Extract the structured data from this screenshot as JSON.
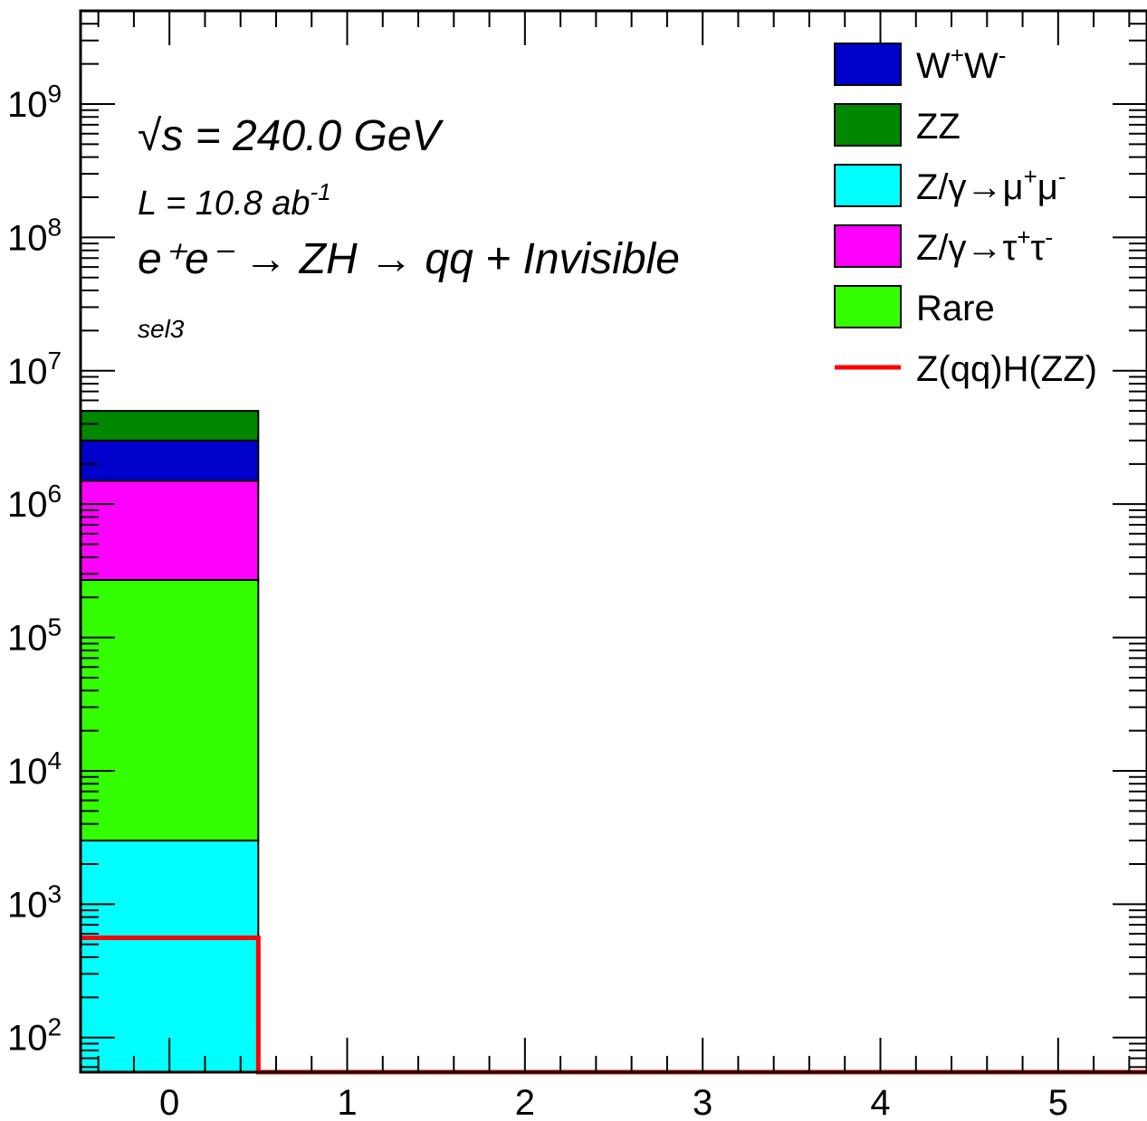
{
  "chart_data": {
    "type": "bar",
    "stacked": true,
    "x_scale": "linear",
    "y_scale": "log",
    "xlim": [
      -0.5,
      5.5
    ],
    "ylim": [
      55,
      5000000000
    ],
    "x_ticks": [
      "0",
      "1",
      "2",
      "3",
      "4",
      "5"
    ],
    "y_ticks": [
      {
        "base": "10",
        "exp": "2"
      },
      {
        "base": "10",
        "exp": "3"
      },
      {
        "base": "10",
        "exp": "4"
      },
      {
        "base": "10",
        "exp": "5"
      },
      {
        "base": "10",
        "exp": "6"
      },
      {
        "base": "10",
        "exp": "7"
      },
      {
        "base": "10",
        "exp": "8"
      },
      {
        "base": "10",
        "exp": "9"
      }
    ],
    "bins": [
      {
        "x0": -0.5,
        "x1": 0.5
      }
    ],
    "stack": [
      {
        "name": "Z/γ→μ⁺μ⁻",
        "color": "#00ffff",
        "values": [
          3000
        ]
      },
      {
        "name": "Rare",
        "color": "#33ff00",
        "values": [
          267000
        ]
      },
      {
        "name": "Z/γ→τ⁺τ⁻",
        "color": "#ff00ff",
        "values": [
          1230000
        ]
      },
      {
        "name": "W⁺W⁻",
        "color": "#0000cc",
        "values": [
          1500000
        ]
      },
      {
        "name": "ZZ",
        "color": "#008800",
        "values": [
          2000000
        ]
      }
    ],
    "signal": {
      "name": "Z(qq)H(ZZ)",
      "color": "#ff0000",
      "values": [
        560,
        55,
        55,
        55,
        55,
        55
      ]
    },
    "annotations": {
      "sqrt_s": "√s = 240.0 GeV",
      "lumi_prefix": "L = 10.8 ab",
      "lumi_exp": "-1",
      "process": "e⁺e⁻ → ZH → qq + Invisible",
      "selection": "sel3"
    },
    "legend": {
      "placement": "top-right",
      "entries": [
        {
          "label": "W",
          "sup1": "+",
          "label2": "W",
          "sup2": "-",
          "style": "box",
          "color": "#0000cc"
        },
        {
          "label": "ZZ",
          "sup1": "",
          "label2": "",
          "sup2": "",
          "style": "box",
          "color": "#008800"
        },
        {
          "label": "Z/γ→μ",
          "sup1": "+",
          "label2": "μ",
          "sup2": "-",
          "style": "box",
          "color": "#00ffff"
        },
        {
          "label": "Z/γ→τ",
          "sup1": "+",
          "label2": "τ",
          "sup2": "-",
          "style": "box",
          "color": "#ff00ff"
        },
        {
          "label": "Rare",
          "sup1": "",
          "label2": "",
          "sup2": "",
          "style": "box",
          "color": "#33ff00"
        },
        {
          "label": "Z(qq)H(ZZ)",
          "sup1": "",
          "label2": "",
          "sup2": "",
          "style": "line",
          "color": "#ff0000"
        }
      ]
    }
  }
}
